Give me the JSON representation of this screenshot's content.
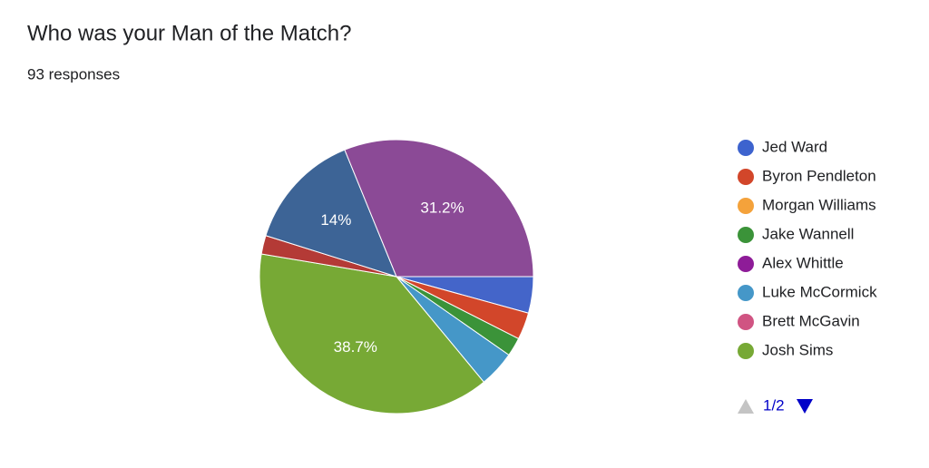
{
  "chart_data": {
    "type": "pie",
    "title": "Who was your Man of the Match?",
    "subtitle": "93 responses",
    "categories": [
      "Jed Ward",
      "Byron Pendleton",
      "Morgan Williams",
      "Jake Wannell",
      "Alex Whittle",
      "Luke McCormick",
      "Brett McGavin",
      "Josh Sims",
      null,
      null
    ],
    "values": [
      4.3,
      3.2,
      0,
      2.2,
      31.2,
      4.3,
      0,
      38.7,
      2.2,
      14
    ],
    "value_labels": [
      null,
      null,
      null,
      null,
      "31.2%",
      null,
      null,
      "38.7%",
      null,
      "14%"
    ],
    "colors": [
      "#4465c9",
      "#d2462a",
      "#f4a23b",
      "#3b9339",
      "#8b4a96",
      "#4597c8",
      "#d05482",
      "#77a935",
      "#b43a36",
      "#3d6496"
    ],
    "legend_colors": [
      "#3d63ce",
      "#d2462a",
      "#f4a23b",
      "#3b9339",
      "#8e1c98",
      "#4597c8",
      "#d05482",
      "#77a935"
    ],
    "legend_page": "1/2",
    "legend": "right"
  }
}
